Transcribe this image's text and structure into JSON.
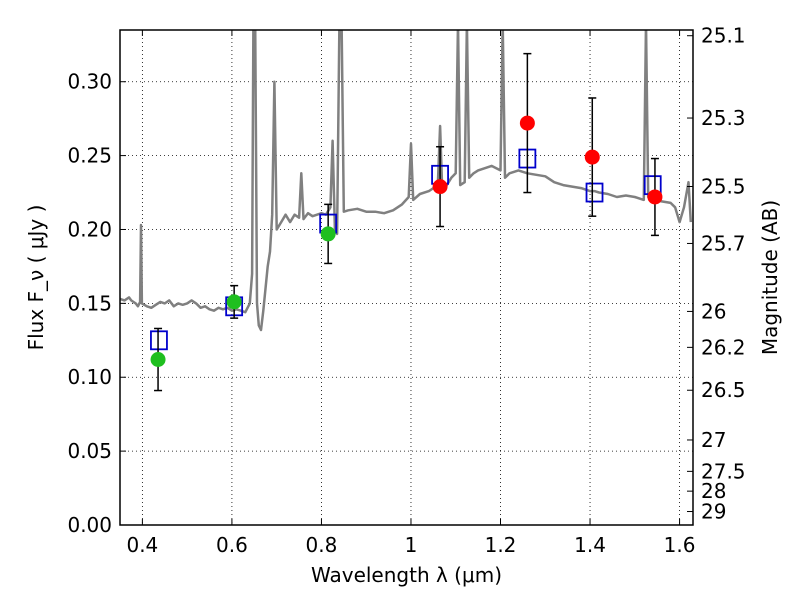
{
  "chart_data": {
    "type": "scatter",
    "xlabel": "Wavelength  λ (μm)",
    "ylabel": "Flux  F_ν  ( μJy )",
    "y2label": "Magnitude (AB)",
    "xlim": [
      0.35,
      1.63
    ],
    "ylim": [
      0.0,
      0.335
    ],
    "grid": true,
    "x_ticks": [
      {
        "value": 0.4,
        "label": "0.4"
      },
      {
        "value": 0.6,
        "label": "0.6"
      },
      {
        "value": 0.8,
        "label": "0.8"
      },
      {
        "value": 1.0,
        "label": "1"
      },
      {
        "value": 1.2,
        "label": "1.2"
      },
      {
        "value": 1.4,
        "label": "1.4"
      },
      {
        "value": 1.6,
        "label": "1.6"
      }
    ],
    "y_ticks": [
      {
        "value": 0.0,
        "label": "0.00"
      },
      {
        "value": 0.05,
        "label": "0.05"
      },
      {
        "value": 0.1,
        "label": "0.10"
      },
      {
        "value": 0.15,
        "label": "0.15"
      },
      {
        "value": 0.2,
        "label": "0.20"
      },
      {
        "value": 0.25,
        "label": "0.25"
      },
      {
        "value": 0.3,
        "label": "0.30"
      }
    ],
    "mag_ticks": [
      {
        "value": 25.1,
        "label": "25.1"
      },
      {
        "value": 25.3,
        "label": "25.3"
      },
      {
        "value": 25.5,
        "label": "25.5"
      },
      {
        "value": 25.7,
        "label": "25.7"
      },
      {
        "value": 26,
        "label": "26"
      },
      {
        "value": 26.2,
        "label": "26.2"
      },
      {
        "value": 26.5,
        "label": "26.5"
      },
      {
        "value": 27,
        "label": "27"
      },
      {
        "value": 27.5,
        "label": "27.5"
      },
      {
        "value": 28,
        "label": "28"
      },
      {
        "value": 29,
        "label": "29"
      }
    ],
    "colors": {
      "spectrum": "#808080",
      "optical_points": "#1fbf1f",
      "nir_points": "#ff0000",
      "model_squares": "#0000cc",
      "errorbars": "#000000"
    },
    "spectrum": [
      [
        0.35,
        0.153
      ],
      [
        0.36,
        0.152
      ],
      [
        0.37,
        0.154
      ],
      [
        0.375,
        0.152
      ],
      [
        0.38,
        0.151
      ],
      [
        0.385,
        0.15
      ],
      [
        0.39,
        0.148
      ],
      [
        0.395,
        0.151
      ],
      [
        0.397,
        0.203
      ],
      [
        0.399,
        0.15
      ],
      [
        0.41,
        0.148
      ],
      [
        0.42,
        0.147
      ],
      [
        0.43,
        0.149
      ],
      [
        0.44,
        0.151
      ],
      [
        0.45,
        0.15
      ],
      [
        0.46,
        0.152
      ],
      [
        0.47,
        0.148
      ],
      [
        0.48,
        0.15
      ],
      [
        0.49,
        0.149
      ],
      [
        0.5,
        0.15
      ],
      [
        0.51,
        0.152
      ],
      [
        0.52,
        0.15
      ],
      [
        0.53,
        0.147
      ],
      [
        0.54,
        0.148
      ],
      [
        0.55,
        0.146
      ],
      [
        0.56,
        0.145
      ],
      [
        0.57,
        0.147
      ],
      [
        0.58,
        0.146
      ],
      [
        0.59,
        0.147
      ],
      [
        0.6,
        0.145
      ],
      [
        0.61,
        0.146
      ],
      [
        0.62,
        0.145
      ],
      [
        0.63,
        0.144
      ],
      [
        0.64,
        0.15
      ],
      [
        0.645,
        0.17
      ],
      [
        0.648,
        0.34
      ],
      [
        0.652,
        0.34
      ],
      [
        0.656,
        0.15
      ],
      [
        0.66,
        0.135
      ],
      [
        0.665,
        0.132
      ],
      [
        0.67,
        0.145
      ],
      [
        0.675,
        0.16
      ],
      [
        0.68,
        0.175
      ],
      [
        0.685,
        0.185
      ],
      [
        0.69,
        0.21
      ],
      [
        0.695,
        0.3
      ],
      [
        0.7,
        0.2
      ],
      [
        0.71,
        0.205
      ],
      [
        0.72,
        0.21
      ],
      [
        0.73,
        0.205
      ],
      [
        0.74,
        0.21
      ],
      [
        0.75,
        0.208
      ],
      [
        0.755,
        0.238
      ],
      [
        0.76,
        0.207
      ],
      [
        0.77,
        0.211
      ],
      [
        0.78,
        0.209
      ],
      [
        0.79,
        0.21
      ],
      [
        0.8,
        0.211
      ],
      [
        0.81,
        0.21
      ],
      [
        0.82,
        0.215
      ],
      [
        0.825,
        0.26
      ],
      [
        0.83,
        0.2
      ],
      [
        0.835,
        0.197
      ],
      [
        0.84,
        0.34
      ],
      [
        0.845,
        0.34
      ],
      [
        0.85,
        0.212
      ],
      [
        0.86,
        0.213
      ],
      [
        0.88,
        0.214
      ],
      [
        0.9,
        0.212
      ],
      [
        0.92,
        0.212
      ],
      [
        0.94,
        0.211
      ],
      [
        0.96,
        0.213
      ],
      [
        0.98,
        0.217
      ],
      [
        0.995,
        0.222
      ],
      [
        1.0,
        0.258
      ],
      [
        1.005,
        0.22
      ],
      [
        1.02,
        0.224
      ],
      [
        1.04,
        0.226
      ],
      [
        1.06,
        0.23
      ],
      [
        1.065,
        0.27
      ],
      [
        1.07,
        0.225
      ],
      [
        1.08,
        0.23
      ],
      [
        1.09,
        0.235
      ],
      [
        1.1,
        0.238
      ],
      [
        1.105,
        0.34
      ],
      [
        1.11,
        0.23
      ],
      [
        1.12,
        0.232
      ],
      [
        1.125,
        0.34
      ],
      [
        1.13,
        0.235
      ],
      [
        1.14,
        0.238
      ],
      [
        1.15,
        0.24
      ],
      [
        1.16,
        0.241
      ],
      [
        1.18,
        0.243
      ],
      [
        1.2,
        0.24
      ],
      [
        1.205,
        0.34
      ],
      [
        1.21,
        0.235
      ],
      [
        1.22,
        0.238
      ],
      [
        1.24,
        0.24
      ],
      [
        1.26,
        0.238
      ],
      [
        1.28,
        0.237
      ],
      [
        1.3,
        0.236
      ],
      [
        1.32,
        0.232
      ],
      [
        1.34,
        0.23
      ],
      [
        1.36,
        0.229
      ],
      [
        1.38,
        0.228
      ],
      [
        1.4,
        0.226
      ],
      [
        1.41,
        0.226
      ],
      [
        1.42,
        0.225
      ],
      [
        1.44,
        0.224
      ],
      [
        1.46,
        0.222
      ],
      [
        1.48,
        0.223
      ],
      [
        1.5,
        0.222
      ],
      [
        1.52,
        0.22
      ],
      [
        1.525,
        0.34
      ],
      [
        1.53,
        0.222
      ],
      [
        1.54,
        0.22
      ],
      [
        1.56,
        0.219
      ],
      [
        1.58,
        0.218
      ],
      [
        1.59,
        0.215
      ],
      [
        1.6,
        0.205
      ],
      [
        1.61,
        0.215
      ],
      [
        1.62,
        0.232
      ],
      [
        1.625,
        0.205
      ]
    ],
    "series": [
      {
        "marker": "circle",
        "color": "#1fbf1f",
        "points": [
          {
            "x": 0.435,
            "y": 0.112,
            "err": 0.021
          },
          {
            "x": 0.605,
            "y": 0.151,
            "err": 0.011
          },
          {
            "x": 0.815,
            "y": 0.197,
            "err": 0.02
          }
        ]
      },
      {
        "marker": "circle",
        "color": "#ff0000",
        "points": [
          {
            "x": 1.065,
            "y": 0.229,
            "err": 0.027
          },
          {
            "x": 1.26,
            "y": 0.272,
            "err": 0.047
          },
          {
            "x": 1.405,
            "y": 0.249,
            "err": 0.04
          },
          {
            "x": 1.545,
            "y": 0.222,
            "err": 0.026
          }
        ]
      },
      {
        "marker": "square",
        "color": "#0000cc",
        "points": [
          {
            "x": 0.437,
            "y": 0.125
          },
          {
            "x": 0.605,
            "y": 0.148
          },
          {
            "x": 0.815,
            "y": 0.204
          },
          {
            "x": 1.065,
            "y": 0.237
          },
          {
            "x": 1.26,
            "y": 0.248
          },
          {
            "x": 1.41,
            "y": 0.225
          },
          {
            "x": 1.54,
            "y": 0.23
          }
        ]
      }
    ]
  }
}
